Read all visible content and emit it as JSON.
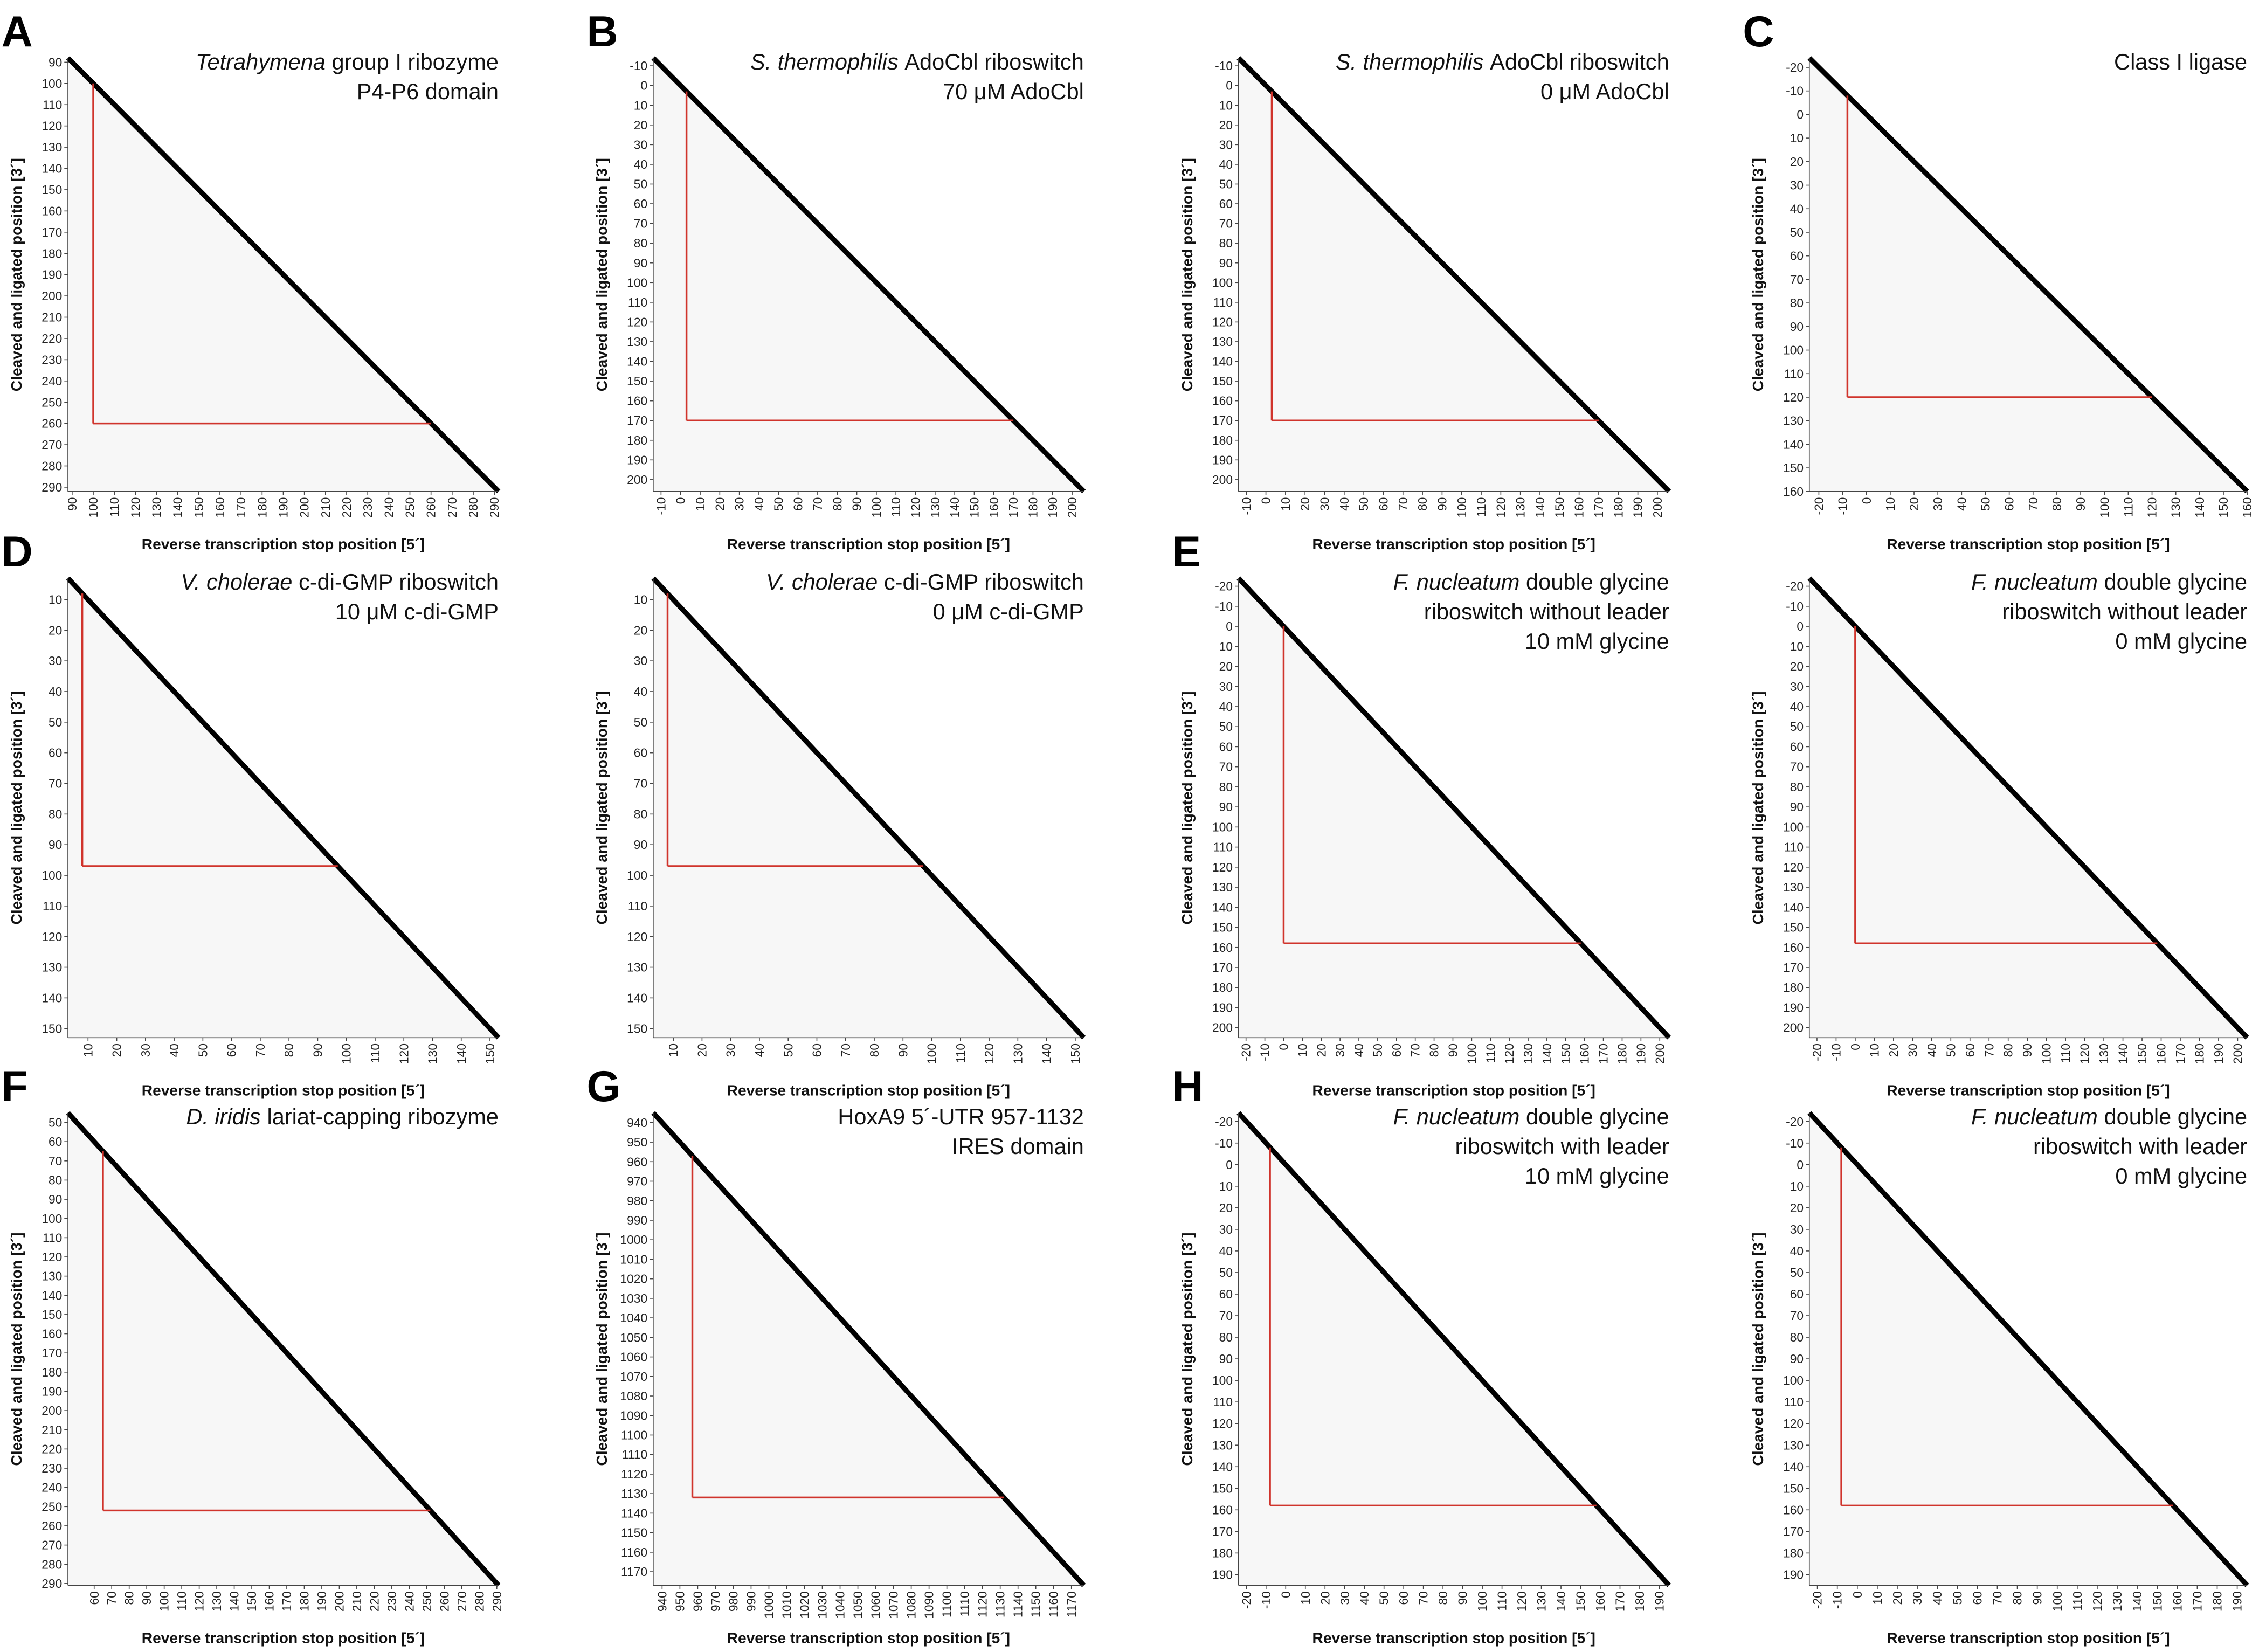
{
  "chart_data": [
    {
      "type": "heatmap",
      "label": "A",
      "title": [
        [
          {
            "text": "Tetrahymena",
            "italic": true
          },
          {
            "text": "group I ribozyme"
          }
        ],
        [
          {
            "text": "P4-P6 domain"
          }
        ]
      ],
      "xlabel": "Reverse transcription stop position [5´]",
      "ylabel": "Cleaved and ligated position [3´]",
      "xlim": [
        88,
        292
      ],
      "ylim": [
        88,
        292
      ],
      "xticks": [
        90,
        100,
        110,
        120,
        130,
        140,
        150,
        160,
        170,
        180,
        190,
        200,
        210,
        220,
        230,
        240,
        250,
        260,
        270,
        280,
        290
      ],
      "yticks": [
        90,
        100,
        110,
        120,
        130,
        140,
        150,
        160,
        170,
        180,
        190,
        200,
        210,
        220,
        230,
        240,
        250,
        260,
        270,
        280,
        290
      ],
      "box": [
        100,
        260
      ],
      "box_color": "#d0342c"
    },
    {
      "type": "heatmap",
      "label": "B",
      "title": [
        [
          {
            "text": "S. thermophilis",
            "italic": true
          },
          {
            "text": "AdoCbl riboswitch"
          }
        ],
        [
          {
            "text": "70 μM AdoCbl"
          }
        ]
      ],
      "xlabel": "Reverse transcription stop position [5´]",
      "ylabel": "Cleaved and ligated position [3´]",
      "xlim": [
        -14,
        206
      ],
      "ylim": [
        -14,
        206
      ],
      "xticks": [
        -10,
        0,
        10,
        20,
        30,
        40,
        50,
        60,
        70,
        80,
        90,
        100,
        110,
        120,
        130,
        140,
        150,
        160,
        170,
        180,
        190,
        200
      ],
      "yticks": [
        -10,
        0,
        10,
        20,
        30,
        40,
        50,
        60,
        70,
        80,
        90,
        100,
        110,
        120,
        130,
        140,
        150,
        160,
        170,
        180,
        190,
        200
      ],
      "box": [
        3,
        170
      ],
      "box_color": "#d0342c"
    },
    {
      "type": "heatmap",
      "title": [
        [
          {
            "text": "S. thermophilis",
            "italic": true
          },
          {
            "text": "AdoCbl riboswitch"
          }
        ],
        [
          {
            "text": "0 μM AdoCbl"
          }
        ]
      ],
      "xlabel": "Reverse transcription stop position [5´]",
      "ylabel": "Cleaved and ligated position [3´]",
      "xlim": [
        -14,
        206
      ],
      "ylim": [
        -14,
        206
      ],
      "xticks": [
        -10,
        0,
        10,
        20,
        30,
        40,
        50,
        60,
        70,
        80,
        90,
        100,
        110,
        120,
        130,
        140,
        150,
        160,
        170,
        180,
        190,
        200
      ],
      "yticks": [
        -10,
        0,
        10,
        20,
        30,
        40,
        50,
        60,
        70,
        80,
        90,
        100,
        110,
        120,
        130,
        140,
        150,
        160,
        170,
        180,
        190,
        200
      ],
      "box": [
        3,
        170
      ],
      "box_color": "#d0342c"
    },
    {
      "type": "heatmap",
      "label": "C",
      "title": [
        [
          {
            "text": "Class I ligase"
          }
        ]
      ],
      "xlabel": "Reverse transcription stop position [5´]",
      "ylabel": "Cleaved and ligated position [3´]",
      "xlim": [
        -24,
        160
      ],
      "ylim": [
        -24,
        160
      ],
      "xticks": [
        -20,
        -10,
        0,
        10,
        20,
        30,
        40,
        50,
        60,
        70,
        80,
        90,
        100,
        110,
        120,
        130,
        140,
        150,
        160
      ],
      "yticks": [
        -20,
        -10,
        0,
        10,
        20,
        30,
        40,
        50,
        60,
        70,
        80,
        90,
        100,
        110,
        120,
        130,
        140,
        150,
        160
      ],
      "box": [
        -8,
        120
      ],
      "box_color": "#d0342c"
    },
    {
      "type": "heatmap",
      "label": "D",
      "title": [
        [
          {
            "text": "V. cholerae",
            "italic": true
          },
          {
            "text": "c-di-GMP riboswitch"
          }
        ],
        [
          {
            "text": "10 μM c-di-GMP"
          }
        ]
      ],
      "xlabel": "Reverse transcription stop position [5´]",
      "ylabel": "Cleaved and ligated position [3´]",
      "xlim": [
        3,
        153
      ],
      "ylim": [
        3,
        153
      ],
      "xticks": [
        10,
        20,
        30,
        40,
        50,
        60,
        70,
        80,
        90,
        100,
        110,
        120,
        130,
        140,
        150
      ],
      "yticks": [
        10,
        20,
        30,
        40,
        50,
        60,
        70,
        80,
        90,
        100,
        110,
        120,
        130,
        140,
        150
      ],
      "box": [
        8,
        97
      ],
      "box_color": "#d0342c"
    },
    {
      "type": "heatmap",
      "title": [
        [
          {
            "text": "V. cholerae",
            "italic": true
          },
          {
            "text": "c-di-GMP riboswitch"
          }
        ],
        [
          {
            "text": "0 μM c-di-GMP"
          }
        ]
      ],
      "xlabel": "Reverse transcription stop position [5´]",
      "ylabel": "Cleaved and ligated position [3´]",
      "xlim": [
        3,
        153
      ],
      "ylim": [
        3,
        153
      ],
      "xticks": [
        10,
        20,
        30,
        40,
        50,
        60,
        70,
        80,
        90,
        100,
        110,
        120,
        130,
        140,
        150
      ],
      "yticks": [
        10,
        20,
        30,
        40,
        50,
        60,
        70,
        80,
        90,
        100,
        110,
        120,
        130,
        140,
        150
      ],
      "box": [
        8,
        97
      ],
      "box_color": "#d0342c"
    },
    {
      "type": "heatmap",
      "label": "E",
      "title": [
        [
          {
            "text": "F. nucleatum",
            "italic": true
          },
          {
            "text": "double glycine"
          }
        ],
        [
          {
            "text": "riboswitch without leader"
          }
        ],
        [
          {
            "text": "10 mM glycine"
          }
        ]
      ],
      "xlabel": "Reverse transcription stop position [5´]",
      "ylabel": "Cleaved and ligated position [3´]",
      "xlim": [
        -24,
        205
      ],
      "ylim": [
        -24,
        205
      ],
      "xticks": [
        -20,
        -10,
        0,
        10,
        20,
        30,
        40,
        50,
        60,
        70,
        80,
        90,
        100,
        110,
        120,
        130,
        140,
        150,
        160,
        170,
        180,
        190,
        200
      ],
      "yticks": [
        -20,
        -10,
        0,
        10,
        20,
        30,
        40,
        50,
        60,
        70,
        80,
        90,
        100,
        110,
        120,
        130,
        140,
        150,
        160,
        170,
        180,
        190,
        200
      ],
      "box": [
        0,
        158
      ],
      "box_color": "#d0342c"
    },
    {
      "type": "heatmap",
      "title": [
        [
          {
            "text": "F. nucleatum",
            "italic": true
          },
          {
            "text": "double glycine"
          }
        ],
        [
          {
            "text": "riboswitch without leader"
          }
        ],
        [
          {
            "text": "0 mM glycine"
          }
        ]
      ],
      "xlabel": "Reverse transcription stop position [5´]",
      "ylabel": "Cleaved and ligated position [3´]",
      "xlim": [
        -24,
        205
      ],
      "ylim": [
        -24,
        205
      ],
      "xticks": [
        -20,
        -10,
        0,
        10,
        20,
        30,
        40,
        50,
        60,
        70,
        80,
        90,
        100,
        110,
        120,
        130,
        140,
        150,
        160,
        170,
        180,
        190,
        200
      ],
      "yticks": [
        -20,
        -10,
        0,
        10,
        20,
        30,
        40,
        50,
        60,
        70,
        80,
        90,
        100,
        110,
        120,
        130,
        140,
        150,
        160,
        170,
        180,
        190,
        200
      ],
      "box": [
        0,
        158
      ],
      "box_color": "#d0342c"
    },
    {
      "type": "heatmap",
      "label": "F",
      "title": [
        [
          {
            "text": "D. iridis",
            "italic": true
          },
          {
            "text": "lariat-capping ribozyme"
          }
        ]
      ],
      "xlabel": "Reverse transcription stop position [5´]",
      "ylabel": "Cleaved and ligated position [3´]",
      "xlim": [
        45,
        291
      ],
      "ylim": [
        45,
        291
      ],
      "xticks": [
        60,
        70,
        80,
        90,
        100,
        110,
        120,
        130,
        140,
        150,
        160,
        170,
        180,
        190,
        200,
        210,
        220,
        230,
        240,
        250,
        260,
        270,
        280,
        290
      ],
      "yticks": [
        50,
        60,
        70,
        80,
        90,
        100,
        110,
        120,
        130,
        140,
        150,
        160,
        170,
        180,
        190,
        200,
        210,
        220,
        230,
        240,
        250,
        260,
        270,
        280,
        290
      ],
      "box": [
        65,
        252
      ],
      "box_color": "#d0342c"
    },
    {
      "type": "heatmap",
      "label": "G",
      "title": [
        [
          {
            "text": "HoxA9 5´-UTR 957-1132"
          }
        ],
        [
          {
            "text": "IRES domain"
          }
        ]
      ],
      "xlabel": "Reverse transcription stop position [5´]",
      "ylabel": "Cleaved and ligated position [3´]",
      "xlim": [
        935,
        1177
      ],
      "ylim": [
        935,
        1177
      ],
      "xticks": [
        940,
        950,
        960,
        970,
        980,
        990,
        1000,
        1010,
        1020,
        1030,
        1040,
        1050,
        1060,
        1070,
        1080,
        1090,
        1100,
        1110,
        1120,
        1130,
        1140,
        1150,
        1160,
        1170
      ],
      "yticks": [
        940,
        950,
        960,
        970,
        980,
        990,
        1000,
        1010,
        1020,
        1030,
        1040,
        1050,
        1060,
        1070,
        1080,
        1090,
        1100,
        1110,
        1120,
        1130,
        1140,
        1150,
        1160,
        1170
      ],
      "box": [
        957,
        1132
      ],
      "box_color": "#d0342c"
    },
    {
      "type": "heatmap",
      "label": "H",
      "title": [
        [
          {
            "text": "F. nucleatum",
            "italic": true
          },
          {
            "text": "double glycine"
          }
        ],
        [
          {
            "text": "riboswitch with leader"
          }
        ],
        [
          {
            "text": "10 mM glycine"
          }
        ]
      ],
      "xlabel": "Reverse transcription stop position [5´]",
      "ylabel": "Cleaved and ligated position [3´]",
      "xlim": [
        -24,
        195
      ],
      "ylim": [
        -24,
        195
      ],
      "xticks": [
        -20,
        -10,
        0,
        10,
        20,
        30,
        40,
        50,
        60,
        70,
        80,
        90,
        100,
        110,
        120,
        130,
        140,
        150,
        160,
        170,
        180,
        190
      ],
      "yticks": [
        -20,
        -10,
        0,
        10,
        20,
        30,
        40,
        50,
        60,
        70,
        80,
        90,
        100,
        110,
        120,
        130,
        140,
        150,
        160,
        170,
        180,
        190
      ],
      "box": [
        -8,
        158
      ],
      "box_color": "#d0342c"
    },
    {
      "type": "heatmap",
      "title": [
        [
          {
            "text": "F. nucleatum",
            "italic": true
          },
          {
            "text": "double glycine"
          }
        ],
        [
          {
            "text": "riboswitch with leader"
          }
        ],
        [
          {
            "text": "0 mM glycine"
          }
        ]
      ],
      "xlabel": "Reverse transcription stop position [5´]",
      "ylabel": "Cleaved and ligated position [3´]",
      "xlim": [
        -24,
        195
      ],
      "ylim": [
        -24,
        195
      ],
      "xticks": [
        -20,
        -10,
        0,
        10,
        20,
        30,
        40,
        50,
        60,
        70,
        80,
        90,
        100,
        110,
        120,
        130,
        140,
        150,
        160,
        170,
        180,
        190
      ],
      "yticks": [
        -20,
        -10,
        0,
        10,
        20,
        30,
        40,
        50,
        60,
        70,
        80,
        90,
        100,
        110,
        120,
        130,
        140,
        150,
        160,
        170,
        180,
        190
      ],
      "box": [
        -8,
        158
      ],
      "box_color": "#d0342c"
    }
  ]
}
